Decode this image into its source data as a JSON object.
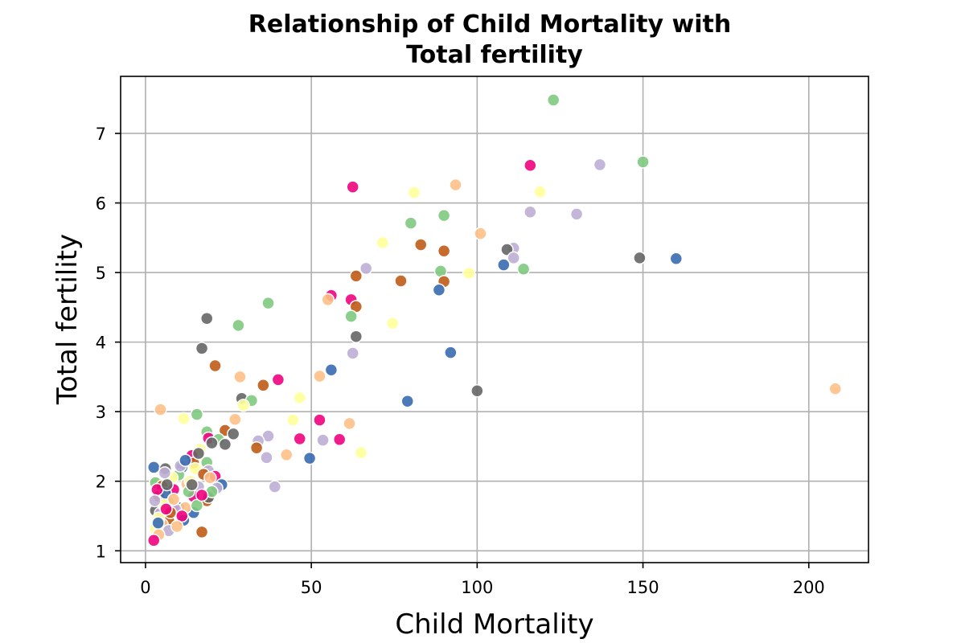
{
  "chart_data": {
    "type": "scatter",
    "title_lines": [
      "Relationship of Child Mortality with",
      "Total fertility"
    ],
    "xlabel": "Child Mortality",
    "ylabel": "Total fertility",
    "xlim": [
      -7.5,
      218
    ],
    "ylim": [
      0.83,
      7.82
    ],
    "xticks": [
      0,
      50,
      100,
      150,
      200
    ],
    "yticks": [
      1,
      2,
      3,
      4,
      5,
      6,
      7
    ],
    "grid": true,
    "legend": "none",
    "palette": [
      "#386cb0",
      "#7fc97f",
      "#beaed4",
      "#fdc086",
      "#ffff99",
      "#f0027f",
      "#bf5b17",
      "#666666"
    ],
    "points": [
      [
        123,
        7.48,
        1
      ],
      [
        150,
        6.59,
        1
      ],
      [
        116,
        6.54,
        5
      ],
      [
        137,
        6.55,
        2
      ],
      [
        62.5,
        6.23,
        5
      ],
      [
        93.5,
        6.26,
        3
      ],
      [
        81,
        6.15,
        4
      ],
      [
        119,
        6.16,
        4
      ],
      [
        116,
        5.87,
        2
      ],
      [
        130,
        5.84,
        2
      ],
      [
        90,
        5.82,
        1
      ],
      [
        80,
        5.71,
        1
      ],
      [
        101,
        5.56,
        3
      ],
      [
        71.5,
        5.43,
        4
      ],
      [
        83,
        5.4,
        6
      ],
      [
        111,
        5.35,
        2
      ],
      [
        109,
        5.33,
        7
      ],
      [
        90,
        5.31,
        6
      ],
      [
        111,
        5.21,
        2
      ],
      [
        149,
        5.21,
        7
      ],
      [
        160,
        5.2,
        0
      ],
      [
        108,
        5.11,
        0
      ],
      [
        114,
        5.05,
        1
      ],
      [
        66.5,
        5.06,
        2
      ],
      [
        89,
        5.02,
        1
      ],
      [
        97.5,
        4.99,
        4
      ],
      [
        63.5,
        4.95,
        6
      ],
      [
        77,
        4.88,
        6
      ],
      [
        90,
        4.87,
        6
      ],
      [
        88.5,
        4.75,
        0
      ],
      [
        56,
        4.67,
        5
      ],
      [
        55,
        4.61,
        3
      ],
      [
        62,
        4.61,
        5
      ],
      [
        37,
        4.56,
        1
      ],
      [
        63.5,
        4.51,
        6
      ],
      [
        62,
        4.37,
        1
      ],
      [
        18.5,
        4.34,
        7
      ],
      [
        74.5,
        4.27,
        4
      ],
      [
        28,
        4.24,
        1
      ],
      [
        63.5,
        4.08,
        7
      ],
      [
        17,
        3.91,
        7
      ],
      [
        92,
        3.85,
        0
      ],
      [
        62.5,
        3.84,
        2
      ],
      [
        21,
        3.66,
        6
      ],
      [
        56,
        3.6,
        0
      ],
      [
        28.5,
        3.5,
        3
      ],
      [
        40,
        3.46,
        5
      ],
      [
        52.5,
        3.51,
        3
      ],
      [
        35.5,
        3.38,
        6
      ],
      [
        208,
        3.33,
        3
      ],
      [
        100,
        3.3,
        7
      ],
      [
        46.5,
        3.2,
        4
      ],
      [
        29,
        3.19,
        7
      ],
      [
        32,
        3.16,
        1
      ],
      [
        29.5,
        3.09,
        4
      ],
      [
        79,
        3.15,
        0
      ],
      [
        4.5,
        3.03,
        3
      ],
      [
        15.5,
        2.96,
        1
      ],
      [
        11.5,
        2.9,
        4
      ],
      [
        27,
        2.89,
        3
      ],
      [
        44.5,
        2.88,
        4
      ],
      [
        52.5,
        2.88,
        5
      ],
      [
        61.5,
        2.83,
        3
      ],
      [
        18.5,
        2.71,
        1
      ],
      [
        24,
        2.73,
        6
      ],
      [
        26.5,
        2.68,
        7
      ],
      [
        37,
        2.65,
        2
      ],
      [
        19,
        2.62,
        5
      ],
      [
        22,
        2.6,
        1
      ],
      [
        34,
        2.58,
        2
      ],
      [
        46.5,
        2.61,
        5
      ],
      [
        53.5,
        2.59,
        2
      ],
      [
        58.5,
        2.6,
        5
      ],
      [
        20,
        2.55,
        7
      ],
      [
        24,
        2.53,
        7
      ],
      [
        33.5,
        2.48,
        6
      ],
      [
        16.5,
        2.46,
        4
      ],
      [
        65,
        2.41,
        4
      ],
      [
        42.5,
        2.38,
        3
      ],
      [
        14,
        2.37,
        5
      ],
      [
        36.5,
        2.34,
        2
      ],
      [
        49.5,
        2.33,
        0
      ],
      [
        14.5,
        2.26,
        6
      ],
      [
        18.5,
        2.27,
        1
      ],
      [
        2.5,
        2.2,
        0
      ],
      [
        11,
        2.2,
        0
      ],
      [
        6,
        2.18,
        7
      ],
      [
        15,
        2.18,
        4
      ],
      [
        19,
        2.15,
        2
      ],
      [
        10,
        2.09,
        1
      ],
      [
        21,
        2.07,
        5
      ],
      [
        3,
        1.98,
        1
      ],
      [
        16,
        1.92,
        2
      ],
      [
        23,
        1.95,
        0
      ],
      [
        39,
        1.92,
        2
      ],
      [
        5,
        1.93,
        6
      ],
      [
        8.5,
        1.88,
        5
      ],
      [
        4,
        1.78,
        6
      ],
      [
        14.5,
        1.78,
        5
      ],
      [
        18.5,
        1.72,
        6
      ],
      [
        19,
        1.77,
        7
      ],
      [
        7,
        1.7,
        1
      ],
      [
        10,
        1.62,
        0
      ],
      [
        3,
        1.58,
        7
      ],
      [
        9.5,
        1.57,
        5
      ],
      [
        14.5,
        1.55,
        0
      ],
      [
        4.5,
        1.54,
        2
      ],
      [
        11.5,
        1.44,
        0
      ],
      [
        7,
        1.43,
        6
      ],
      [
        5,
        1.38,
        3
      ],
      [
        3,
        1.32,
        4
      ],
      [
        7,
        1.29,
        2
      ],
      [
        17,
        1.27,
        6
      ],
      [
        4,
        1.23,
        3
      ],
      [
        2.5,
        1.15,
        5
      ],
      [
        12,
        1.62,
        3
      ],
      [
        5.5,
        1.66,
        4
      ],
      [
        9,
        1.6,
        2
      ],
      [
        6,
        1.83,
        0
      ],
      [
        12.5,
        1.96,
        3
      ],
      [
        8,
        2.05,
        4
      ],
      [
        13,
        1.85,
        1
      ],
      [
        3.5,
        1.88,
        5
      ],
      [
        17.5,
        2.1,
        6
      ],
      [
        10.5,
        2.22,
        2
      ],
      [
        6.5,
        1.95,
        7
      ],
      [
        13.5,
        2.0,
        4
      ],
      [
        8.5,
        1.74,
        3
      ],
      [
        15.5,
        1.65,
        1
      ],
      [
        4,
        1.47,
        4
      ],
      [
        11,
        1.5,
        5
      ],
      [
        19.5,
        2.05,
        3
      ],
      [
        21.5,
        1.9,
        2
      ],
      [
        16,
        2.4,
        7
      ],
      [
        20,
        1.85,
        1
      ],
      [
        2.8,
        1.72,
        2
      ],
      [
        7.5,
        1.55,
        6
      ],
      [
        9.5,
        1.35,
        3
      ],
      [
        5.8,
        2.12,
        2
      ],
      [
        12,
        2.3,
        0
      ],
      [
        14,
        1.95,
        7
      ],
      [
        17,
        1.8,
        5
      ],
      [
        3.8,
        1.4,
        0
      ],
      [
        6.2,
        1.6,
        5
      ]
    ]
  }
}
